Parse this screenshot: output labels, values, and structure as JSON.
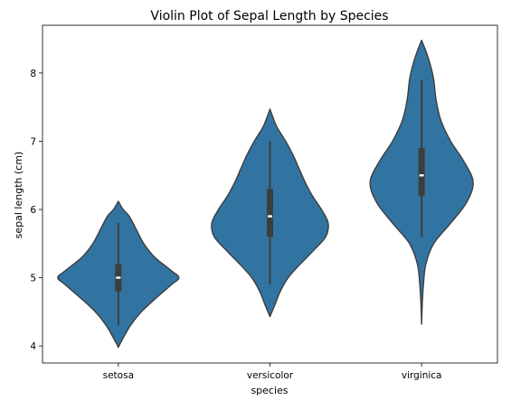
{
  "chart_data": {
    "type": "violin",
    "title": "Violin Plot of Sepal Length by Species",
    "xlabel": "species",
    "ylabel": "sepal length (cm)",
    "categories": [
      "setosa",
      "versicolor",
      "virginica"
    ],
    "y_ticks": [
      4,
      5,
      6,
      7,
      8
    ],
    "ylim": [
      3.75,
      8.7
    ],
    "grid": false,
    "color": "#3274a1",
    "edge_color": "#3d3d3d",
    "series": [
      {
        "category": "setosa",
        "min": 4.3,
        "q1": 4.8,
        "median": 5.0,
        "q3": 5.2,
        "max": 5.8,
        "kde_range": [
          3.98,
          6.12
        ],
        "density": [
          [
            3.98,
            0.0
          ],
          [
            4.1,
            0.07
          ],
          [
            4.3,
            0.2
          ],
          [
            4.5,
            0.38
          ],
          [
            4.7,
            0.62
          ],
          [
            4.9,
            0.88
          ],
          [
            5.0,
            1.0
          ],
          [
            5.1,
            0.88
          ],
          [
            5.3,
            0.6
          ],
          [
            5.5,
            0.42
          ],
          [
            5.7,
            0.3
          ],
          [
            5.9,
            0.18
          ],
          [
            6.0,
            0.08
          ],
          [
            6.12,
            0.0
          ]
        ]
      },
      {
        "category": "versicolor",
        "min": 4.9,
        "q1": 5.6,
        "median": 5.9,
        "q3": 6.3,
        "max": 7.0,
        "kde_range": [
          4.43,
          7.47
        ],
        "density": [
          [
            4.43,
            0.0
          ],
          [
            4.6,
            0.08
          ],
          [
            4.8,
            0.17
          ],
          [
            5.0,
            0.3
          ],
          [
            5.2,
            0.5
          ],
          [
            5.4,
            0.72
          ],
          [
            5.6,
            0.92
          ],
          [
            5.8,
            0.96
          ],
          [
            6.0,
            0.85
          ],
          [
            6.2,
            0.7
          ],
          [
            6.4,
            0.58
          ],
          [
            6.6,
            0.48
          ],
          [
            6.8,
            0.38
          ],
          [
            7.0,
            0.26
          ],
          [
            7.2,
            0.12
          ],
          [
            7.35,
            0.05
          ],
          [
            7.47,
            0.0
          ]
        ]
      },
      {
        "category": "virginica",
        "min": 5.6,
        "q1": 6.2,
        "median": 6.5,
        "q3": 6.9,
        "max": 7.9,
        "kde_range": [
          4.32,
          8.48
        ],
        "density": [
          [
            4.32,
            0.0
          ],
          [
            4.6,
            0.01
          ],
          [
            4.9,
            0.03
          ],
          [
            5.2,
            0.07
          ],
          [
            5.5,
            0.2
          ],
          [
            5.8,
            0.48
          ],
          [
            6.1,
            0.74
          ],
          [
            6.4,
            0.85
          ],
          [
            6.7,
            0.7
          ],
          [
            7.0,
            0.48
          ],
          [
            7.3,
            0.32
          ],
          [
            7.6,
            0.24
          ],
          [
            7.9,
            0.2
          ],
          [
            8.1,
            0.15
          ],
          [
            8.3,
            0.08
          ],
          [
            8.48,
            0.0
          ]
        ]
      }
    ]
  }
}
